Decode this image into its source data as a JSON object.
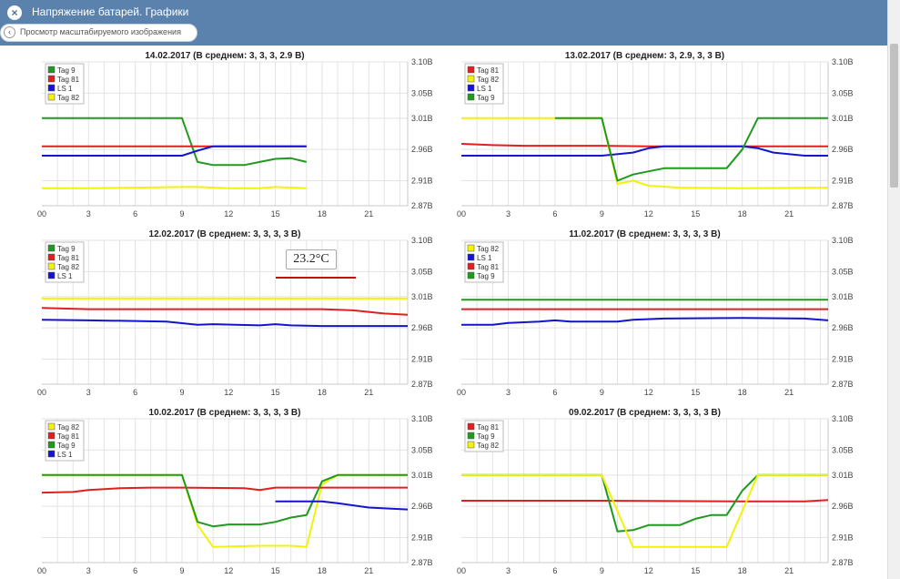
{
  "window": {
    "title": "Напряжение батарей. Графики",
    "back_label": "Просмотр масштабируемого изображения"
  },
  "tooltip": {
    "text": "23.2°C"
  },
  "colors": {
    "green": "#1f9a1f",
    "red": "#e02020",
    "blue": "#1414d0",
    "yellow": "#f2f20a"
  },
  "chart_data": [
    {
      "type": "line",
      "title": "14.02.2017 (В среднем: 3, 3, 3, 2.9 В)",
      "x_ticks": [
        "00",
        "3",
        "6",
        "9",
        "12",
        "15",
        "18",
        "21"
      ],
      "y_ticks": [
        "3.10В",
        "3.05В",
        "3.01В",
        "2.96В",
        "2.91В",
        "2.87В"
      ],
      "xlim": [
        0,
        23.5
      ],
      "ylim": [
        2.87,
        3.1
      ],
      "legend": "top-left",
      "series": [
        {
          "name": "Tag 9",
          "color": "green",
          "points": [
            [
              0,
              3.01
            ],
            [
              9,
              3.01
            ],
            [
              10,
              2.94
            ],
            [
              11,
              2.935
            ],
            [
              13,
              2.935
            ],
            [
              14,
              2.94
            ],
            [
              15,
              2.945
            ],
            [
              16,
              2.946
            ],
            [
              17,
              2.94
            ]
          ]
        },
        {
          "name": "Tag 81",
          "color": "red",
          "points": [
            [
              0,
              2.965
            ],
            [
              17,
              2.965
            ]
          ]
        },
        {
          "name": "LS 1",
          "color": "blue",
          "points": [
            [
              0,
              2.95
            ],
            [
              9,
              2.95
            ],
            [
              10,
              2.958
            ],
            [
              11,
              2.965
            ],
            [
              17,
              2.965
            ]
          ]
        },
        {
          "name": "Tag 82",
          "color": "yellow",
          "points": [
            [
              0,
              2.898
            ],
            [
              3,
              2.898
            ],
            [
              6,
              2.899
            ],
            [
              9,
              2.9
            ],
            [
              10,
              2.9
            ],
            [
              12,
              2.898
            ],
            [
              14,
              2.898
            ],
            [
              15,
              2.9
            ],
            [
              17,
              2.898
            ]
          ]
        }
      ]
    },
    {
      "type": "line",
      "title": "13.02.2017 (В среднем: 3, 2.9, 3, 3 В)",
      "x_ticks": [
        "00",
        "3",
        "6",
        "9",
        "12",
        "15",
        "18",
        "21"
      ],
      "y_ticks": [
        "3.10В",
        "3.05В",
        "3.01В",
        "2.96В",
        "2.91В",
        "2.87В"
      ],
      "xlim": [
        0,
        23.5
      ],
      "ylim": [
        2.87,
        3.1
      ],
      "legend": "top-left",
      "series": [
        {
          "name": "Tag 81",
          "color": "red",
          "points": [
            [
              0,
              2.969
            ],
            [
              2,
              2.967
            ],
            [
              4,
              2.966
            ],
            [
              9,
              2.966
            ],
            [
              12,
              2.965
            ],
            [
              18,
              2.965
            ],
            [
              23.5,
              2.965
            ]
          ]
        },
        {
          "name": "Tag 82",
          "color": "yellow",
          "points": [
            [
              0,
              3.01
            ],
            [
              6,
              3.01
            ],
            [
              9,
              3.01
            ],
            [
              10,
              2.905
            ],
            [
              11,
              2.91
            ],
            [
              12,
              2.902
            ],
            [
              14,
              2.899
            ],
            [
              18,
              2.898
            ],
            [
              23.5,
              2.899
            ]
          ]
        },
        {
          "name": "LS 1",
          "color": "blue",
          "points": [
            [
              0,
              2.95
            ],
            [
              9,
              2.95
            ],
            [
              11,
              2.955
            ],
            [
              12,
              2.962
            ],
            [
              13,
              2.965
            ],
            [
              18,
              2.965
            ],
            [
              19,
              2.962
            ],
            [
              20,
              2.955
            ],
            [
              22,
              2.95
            ],
            [
              23.5,
              2.95
            ]
          ]
        },
        {
          "name": "Tag 9",
          "color": "green",
          "points": [
            [
              6,
              3.01
            ],
            [
              9,
              3.01
            ],
            [
              10,
              2.91
            ],
            [
              11,
              2.92
            ],
            [
              12,
              2.925
            ],
            [
              13,
              2.93
            ],
            [
              17,
              2.93
            ],
            [
              18,
              2.96
            ],
            [
              19,
              3.01
            ],
            [
              23.5,
              3.01
            ]
          ]
        }
      ]
    },
    {
      "type": "line",
      "title": "12.02.2017 (В среднем: 3, 3, 3, 3 В)",
      "x_ticks": [
        "00",
        "3",
        "6",
        "9",
        "12",
        "15",
        "18",
        "21"
      ],
      "y_ticks": [
        "3.10В",
        "3.05В",
        "3.01В",
        "2.96В",
        "2.91В",
        "2.87В"
      ],
      "xlim": [
        0,
        23.5
      ],
      "ylim": [
        2.87,
        3.1
      ],
      "legend": "top-left",
      "series": [
        {
          "name": "Tag 9",
          "color": "green",
          "points": []
        },
        {
          "name": "Tag 81",
          "color": "red",
          "points": [
            [
              0,
              2.992
            ],
            [
              3,
              2.99
            ],
            [
              6,
              2.99
            ],
            [
              12,
              2.99
            ],
            [
              18,
              2.99
            ],
            [
              20,
              2.988
            ],
            [
              22,
              2.983
            ],
            [
              23.5,
              2.981
            ]
          ]
        },
        {
          "name": "Tag 82",
          "color": "yellow",
          "points": [
            [
              0,
              3.007
            ],
            [
              23.5,
              3.007
            ]
          ]
        },
        {
          "name": "LS 1",
          "color": "blue",
          "points": [
            [
              0,
              2.973
            ],
            [
              3,
              2.972
            ],
            [
              6,
              2.971
            ],
            [
              8,
              2.97
            ],
            [
              10,
              2.965
            ],
            [
              11,
              2.966
            ],
            [
              14,
              2.964
            ],
            [
              15,
              2.966
            ],
            [
              16,
              2.964
            ],
            [
              18,
              2.963
            ],
            [
              23.5,
              2.963
            ]
          ]
        }
      ]
    },
    {
      "type": "line",
      "title": "11.02.2017 (В среднем: 3, 3, 3, 3 В)",
      "x_ticks": [
        "00",
        "3",
        "6",
        "9",
        "12",
        "15",
        "18",
        "21"
      ],
      "y_ticks": [
        "3.10В",
        "3.05В",
        "3.01В",
        "2.96В",
        "2.91В",
        "2.87В"
      ],
      "xlim": [
        0,
        23.5
      ],
      "ylim": [
        2.87,
        3.1
      ],
      "legend": "top-left",
      "series": [
        {
          "name": "Tag 82",
          "color": "yellow",
          "points": []
        },
        {
          "name": "LS 1",
          "color": "blue",
          "points": [
            [
              0,
              2.965
            ],
            [
              2,
              2.965
            ],
            [
              3,
              2.968
            ],
            [
              5,
              2.97
            ],
            [
              6,
              2.972
            ],
            [
              7,
              2.97
            ],
            [
              10,
              2.97
            ],
            [
              11,
              2.973
            ],
            [
              13,
              2.975
            ],
            [
              18,
              2.976
            ],
            [
              22,
              2.975
            ],
            [
              23.5,
              2.972
            ]
          ]
        },
        {
          "name": "Tag 81",
          "color": "red",
          "points": [
            [
              0,
              2.99
            ],
            [
              23.5,
              2.99
            ]
          ]
        },
        {
          "name": "Tag 9",
          "color": "green",
          "points": [
            [
              0,
              3.005
            ],
            [
              23.5,
              3.005
            ]
          ]
        }
      ]
    },
    {
      "type": "line",
      "title": "10.02.2017 (В среднем: 3, 3, 3, 3 В)",
      "x_ticks": [
        "00",
        "3",
        "6",
        "9",
        "12",
        "15",
        "18",
        "21"
      ],
      "y_ticks": [
        "3.10В",
        "3.05В",
        "3.01В",
        "2.96В",
        "2.91В",
        "2.87В"
      ],
      "xlim": [
        0,
        23.5
      ],
      "ylim": [
        2.87,
        3.1
      ],
      "legend": "top-left",
      "series": [
        {
          "name": "Tag 82",
          "color": "yellow",
          "points": [
            [
              0,
              3.01
            ],
            [
              9,
              3.01
            ],
            [
              10,
              2.93
            ],
            [
              11,
              2.895
            ],
            [
              14,
              2.897
            ],
            [
              16,
              2.897
            ],
            [
              17,
              2.895
            ],
            [
              18,
              2.995
            ],
            [
              19,
              3.01
            ],
            [
              23.5,
              3.01
            ]
          ]
        },
        {
          "name": "Tag 81",
          "color": "red",
          "points": [
            [
              0,
              2.982
            ],
            [
              2,
              2.983
            ],
            [
              3,
              2.986
            ],
            [
              5,
              2.989
            ],
            [
              7,
              2.99
            ],
            [
              9,
              2.99
            ],
            [
              13,
              2.989
            ],
            [
              14,
              2.986
            ],
            [
              15,
              2.99
            ],
            [
              23.5,
              2.99
            ]
          ]
        },
        {
          "name": "Tag 9",
          "color": "green",
          "points": [
            [
              0,
              3.01
            ],
            [
              9,
              3.01
            ],
            [
              10,
              2.935
            ],
            [
              11,
              2.928
            ],
            [
              12,
              2.931
            ],
            [
              14,
              2.931
            ],
            [
              15,
              2.935
            ],
            [
              16,
              2.942
            ],
            [
              17,
              2.946
            ],
            [
              18,
              3.0
            ],
            [
              19,
              3.01
            ],
            [
              23.5,
              3.01
            ]
          ]
        },
        {
          "name": "LS 1",
          "color": "blue",
          "points": [
            [
              15,
              2.968
            ],
            [
              18,
              2.968
            ],
            [
              19,
              2.965
            ],
            [
              21,
              2.958
            ],
            [
              23.5,
              2.955
            ]
          ]
        }
      ]
    },
    {
      "type": "line",
      "title": "09.02.2017 (В среднем: 3, 3, 3, 3 В)",
      "x_ticks": [
        "00",
        "3",
        "6",
        "9",
        "12",
        "15",
        "18",
        "21"
      ],
      "y_ticks": [
        "3.10В",
        "3.05В",
        "3.01В",
        "2.96В",
        "2.91В",
        "2.87В"
      ],
      "xlim": [
        0,
        23.5
      ],
      "ylim": [
        2.87,
        3.1
      ],
      "legend": "top-left",
      "series": [
        {
          "name": "Tag 81",
          "color": "red",
          "points": [
            [
              0,
              2.969
            ],
            [
              9,
              2.969
            ],
            [
              18,
              2.968
            ],
            [
              22,
              2.968
            ],
            [
              23.5,
              2.97
            ]
          ]
        },
        {
          "name": "Tag 9",
          "color": "green",
          "points": [
            [
              0,
              3.01
            ],
            [
              9,
              3.01
            ],
            [
              10,
              2.92
            ],
            [
              11,
              2.922
            ],
            [
              12,
              2.93
            ],
            [
              14,
              2.93
            ],
            [
              15,
              2.94
            ],
            [
              16,
              2.946
            ],
            [
              17,
              2.946
            ],
            [
              18,
              2.985
            ],
            [
              19,
              3.01
            ],
            [
              23.5,
              3.01
            ]
          ]
        },
        {
          "name": "Tag 82",
          "color": "yellow",
          "points": [
            [
              0,
              3.01
            ],
            [
              9,
              3.01
            ],
            [
              11,
              2.895
            ],
            [
              17,
              2.895
            ],
            [
              19,
              3.01
            ],
            [
              23.5,
              3.01
            ]
          ]
        }
      ]
    }
  ]
}
